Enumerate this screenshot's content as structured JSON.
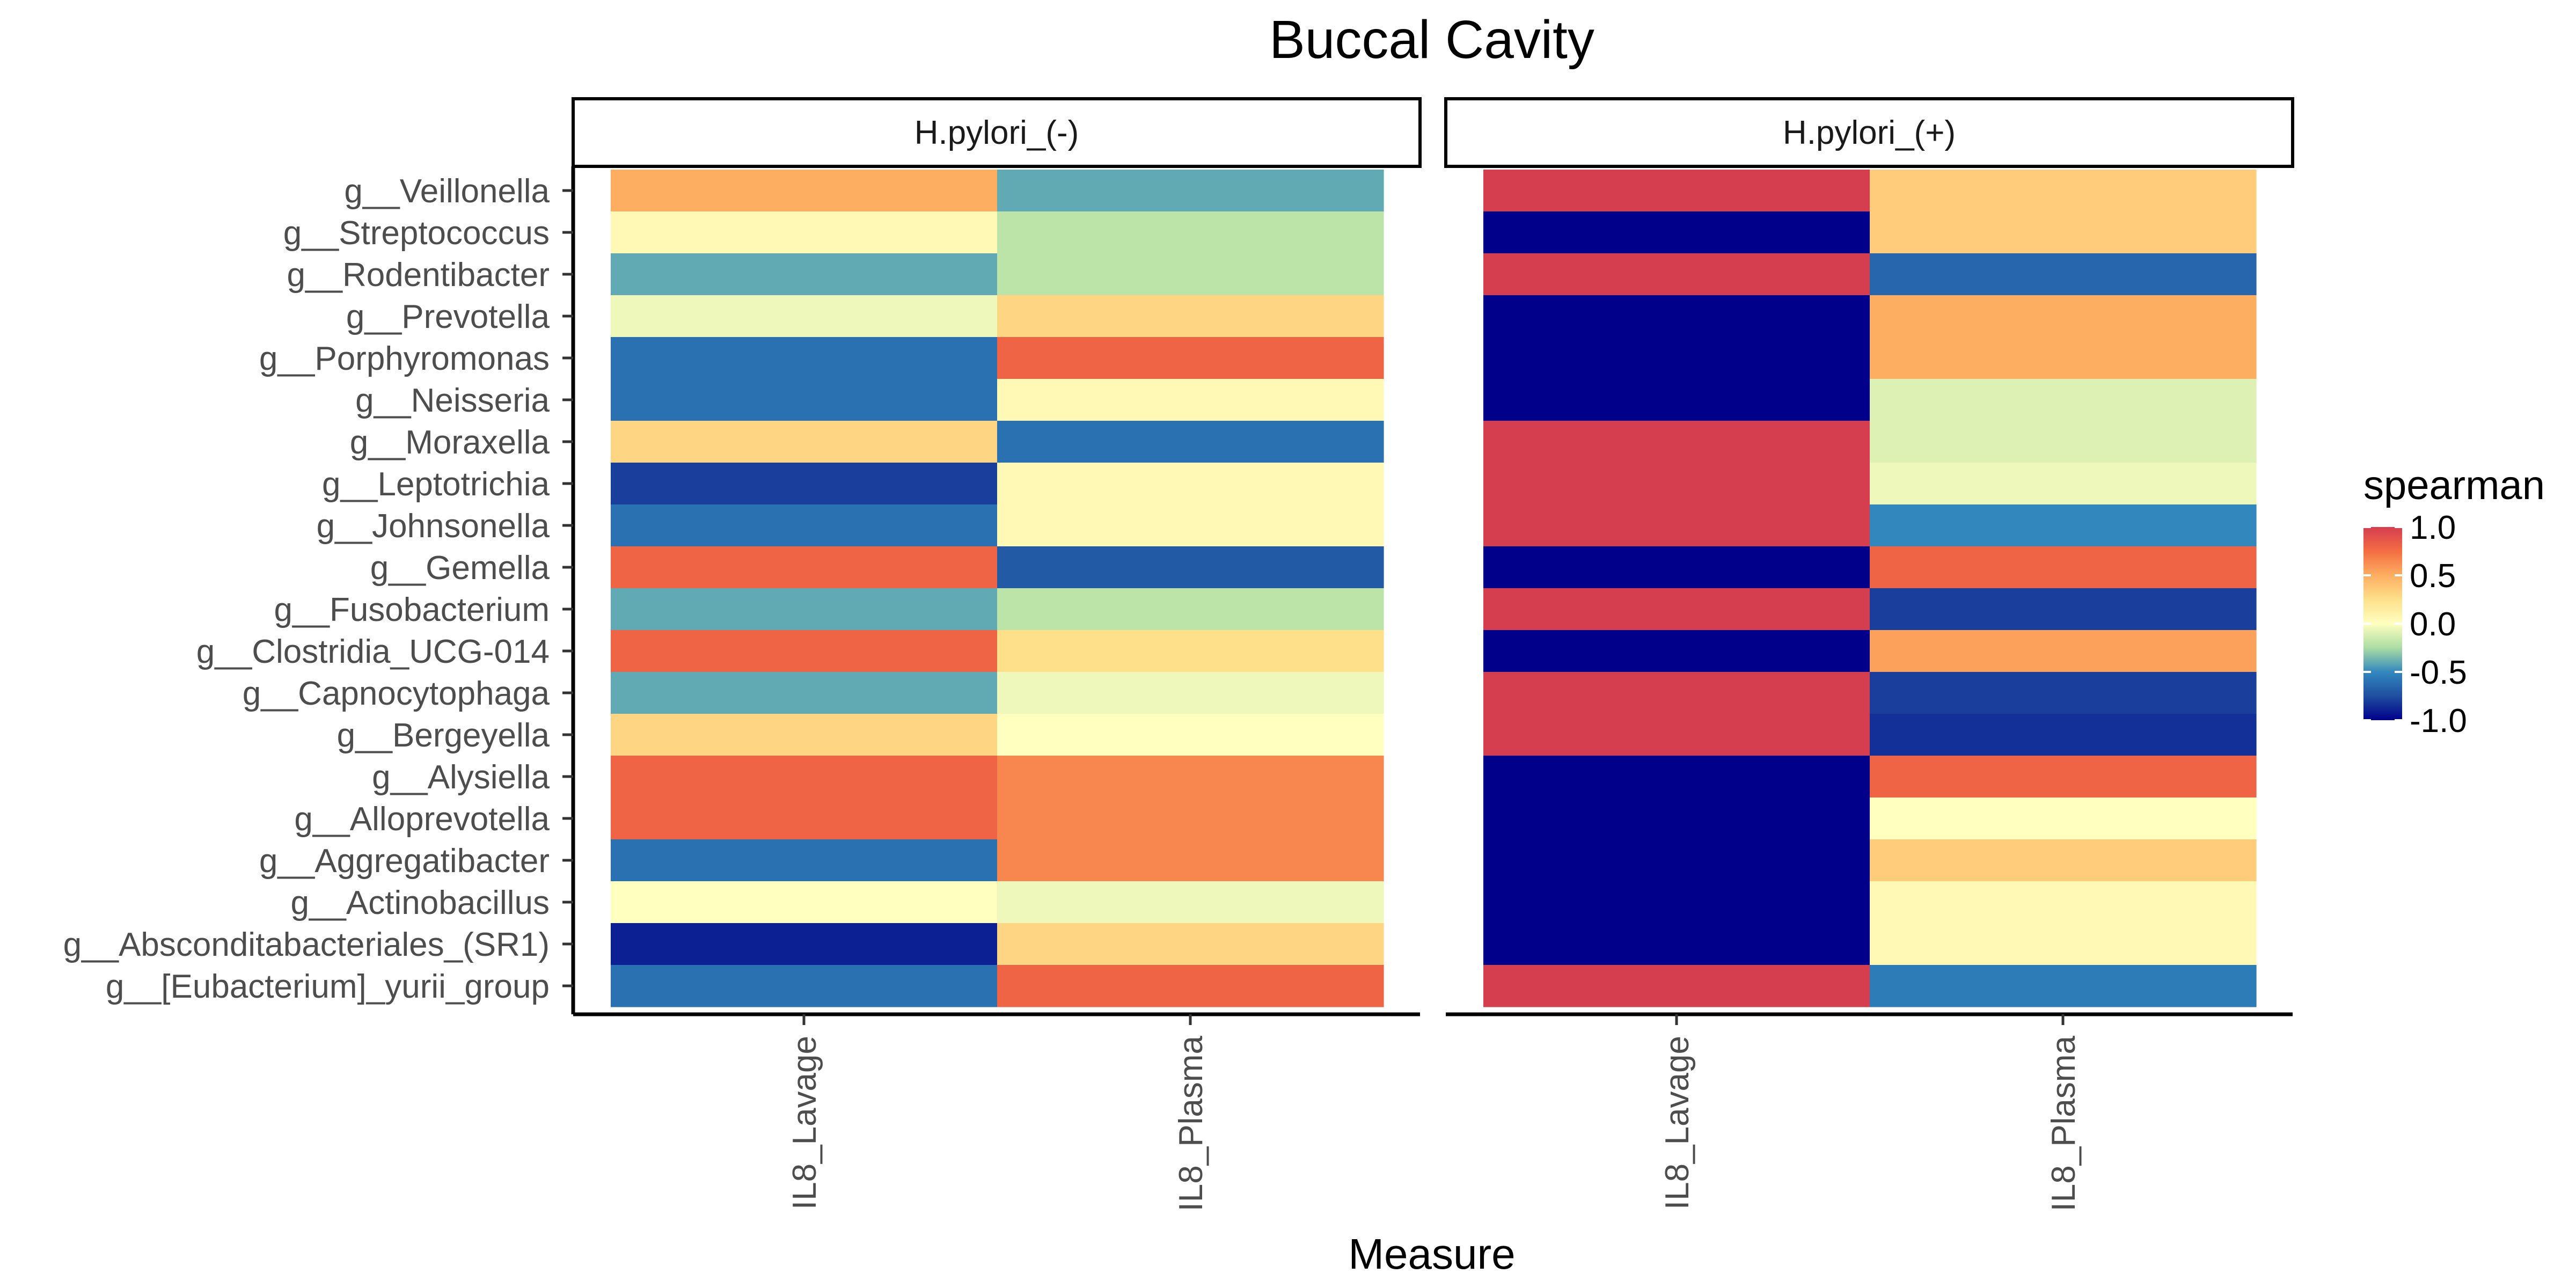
{
  "chart_data": {
    "type": "heatmap",
    "title": "Buccal Cavity",
    "xlabel": "Measure",
    "ylabel": "",
    "facets": [
      "H.pylori_(-)",
      "H.pylori_(+)"
    ],
    "x": [
      "IL8_Lavage",
      "IL8_Plasma"
    ],
    "y": [
      "g__Veillonella",
      "g__Streptococcus",
      "g__Rodentibacter",
      "g__Prevotella",
      "g__Porphyromonas",
      "g__Neisseria",
      "g__Moraxella",
      "g__Leptotrichia",
      "g__Johnsonella",
      "g__Gemella",
      "g__Fusobacterium",
      "g__Clostridia_UCG-014",
      "g__Capnocytophaga",
      "g__Bergeyella",
      "g__Alysiella",
      "g__Alloprevotella",
      "g__Aggregatibacter",
      "g__Actinobacillus",
      "g__Absconditabacteriales_(SR1)",
      "g__[Eubacterium]_yurii_group"
    ],
    "values": {
      "H.pylori_(-)": [
        [
          0.5,
          -0.4
        ],
        [
          0.05,
          -0.2
        ],
        [
          -0.4,
          -0.2
        ],
        [
          -0.05,
          0.3
        ],
        [
          -0.6,
          0.8
        ],
        [
          -0.6,
          0.05
        ],
        [
          0.3,
          -0.6
        ],
        [
          -0.8,
          0.05
        ],
        [
          -0.6,
          0.05
        ],
        [
          0.8,
          -0.7
        ],
        [
          -0.4,
          -0.2
        ],
        [
          0.8,
          0.25
        ],
        [
          -0.4,
          -0.05
        ],
        [
          0.3,
          0.0
        ],
        [
          0.8,
          0.65
        ],
        [
          0.8,
          0.65
        ],
        [
          -0.6,
          0.65
        ],
        [
          0.0,
          -0.05
        ],
        [
          -0.9,
          0.3
        ],
        [
          -0.6,
          0.8
        ]
      ],
      "H.pylori_(+)": [
        [
          1.0,
          0.35
        ],
        [
          -1.0,
          0.35
        ],
        [
          1.0,
          -0.65
        ],
        [
          -1.0,
          0.5
        ],
        [
          -1.0,
          0.5
        ],
        [
          -1.0,
          -0.1
        ],
        [
          1.0,
          -0.1
        ],
        [
          1.0,
          -0.05
        ],
        [
          1.0,
          -0.5
        ],
        [
          -1.0,
          0.8
        ],
        [
          1.0,
          -0.8
        ],
        [
          -1.0,
          0.55
        ],
        [
          1.0,
          -0.8
        ],
        [
          1.0,
          -0.85
        ],
        [
          -1.0,
          0.8
        ],
        [
          -1.0,
          0.0
        ],
        [
          -1.0,
          0.35
        ],
        [
          -1.0,
          0.05
        ],
        [
          -1.0,
          0.05
        ],
        [
          1.0,
          -0.55
        ]
      ]
    },
    "legend": {
      "title": "spearman",
      "ticks": [
        1.0,
        0.5,
        0.0,
        -0.5,
        -1.0
      ],
      "tick_labels": [
        "1.0",
        "0.5",
        "0.0",
        "-0.5",
        "-1.0"
      ],
      "range": [
        -1.0,
        1.0
      ],
      "placement": "right"
    },
    "colors": {
      "1.0": "#d53e4f",
      "0.75": "#f46d43",
      "0.5": "#fdae61",
      "0.25": "#fee08b",
      "0.0": "#ffffbf",
      "-0.25": "#abdda4",
      "-0.5": "#3288bd",
      "-0.75": "#1f4ea0",
      "-1.0": "#00008b"
    }
  }
}
